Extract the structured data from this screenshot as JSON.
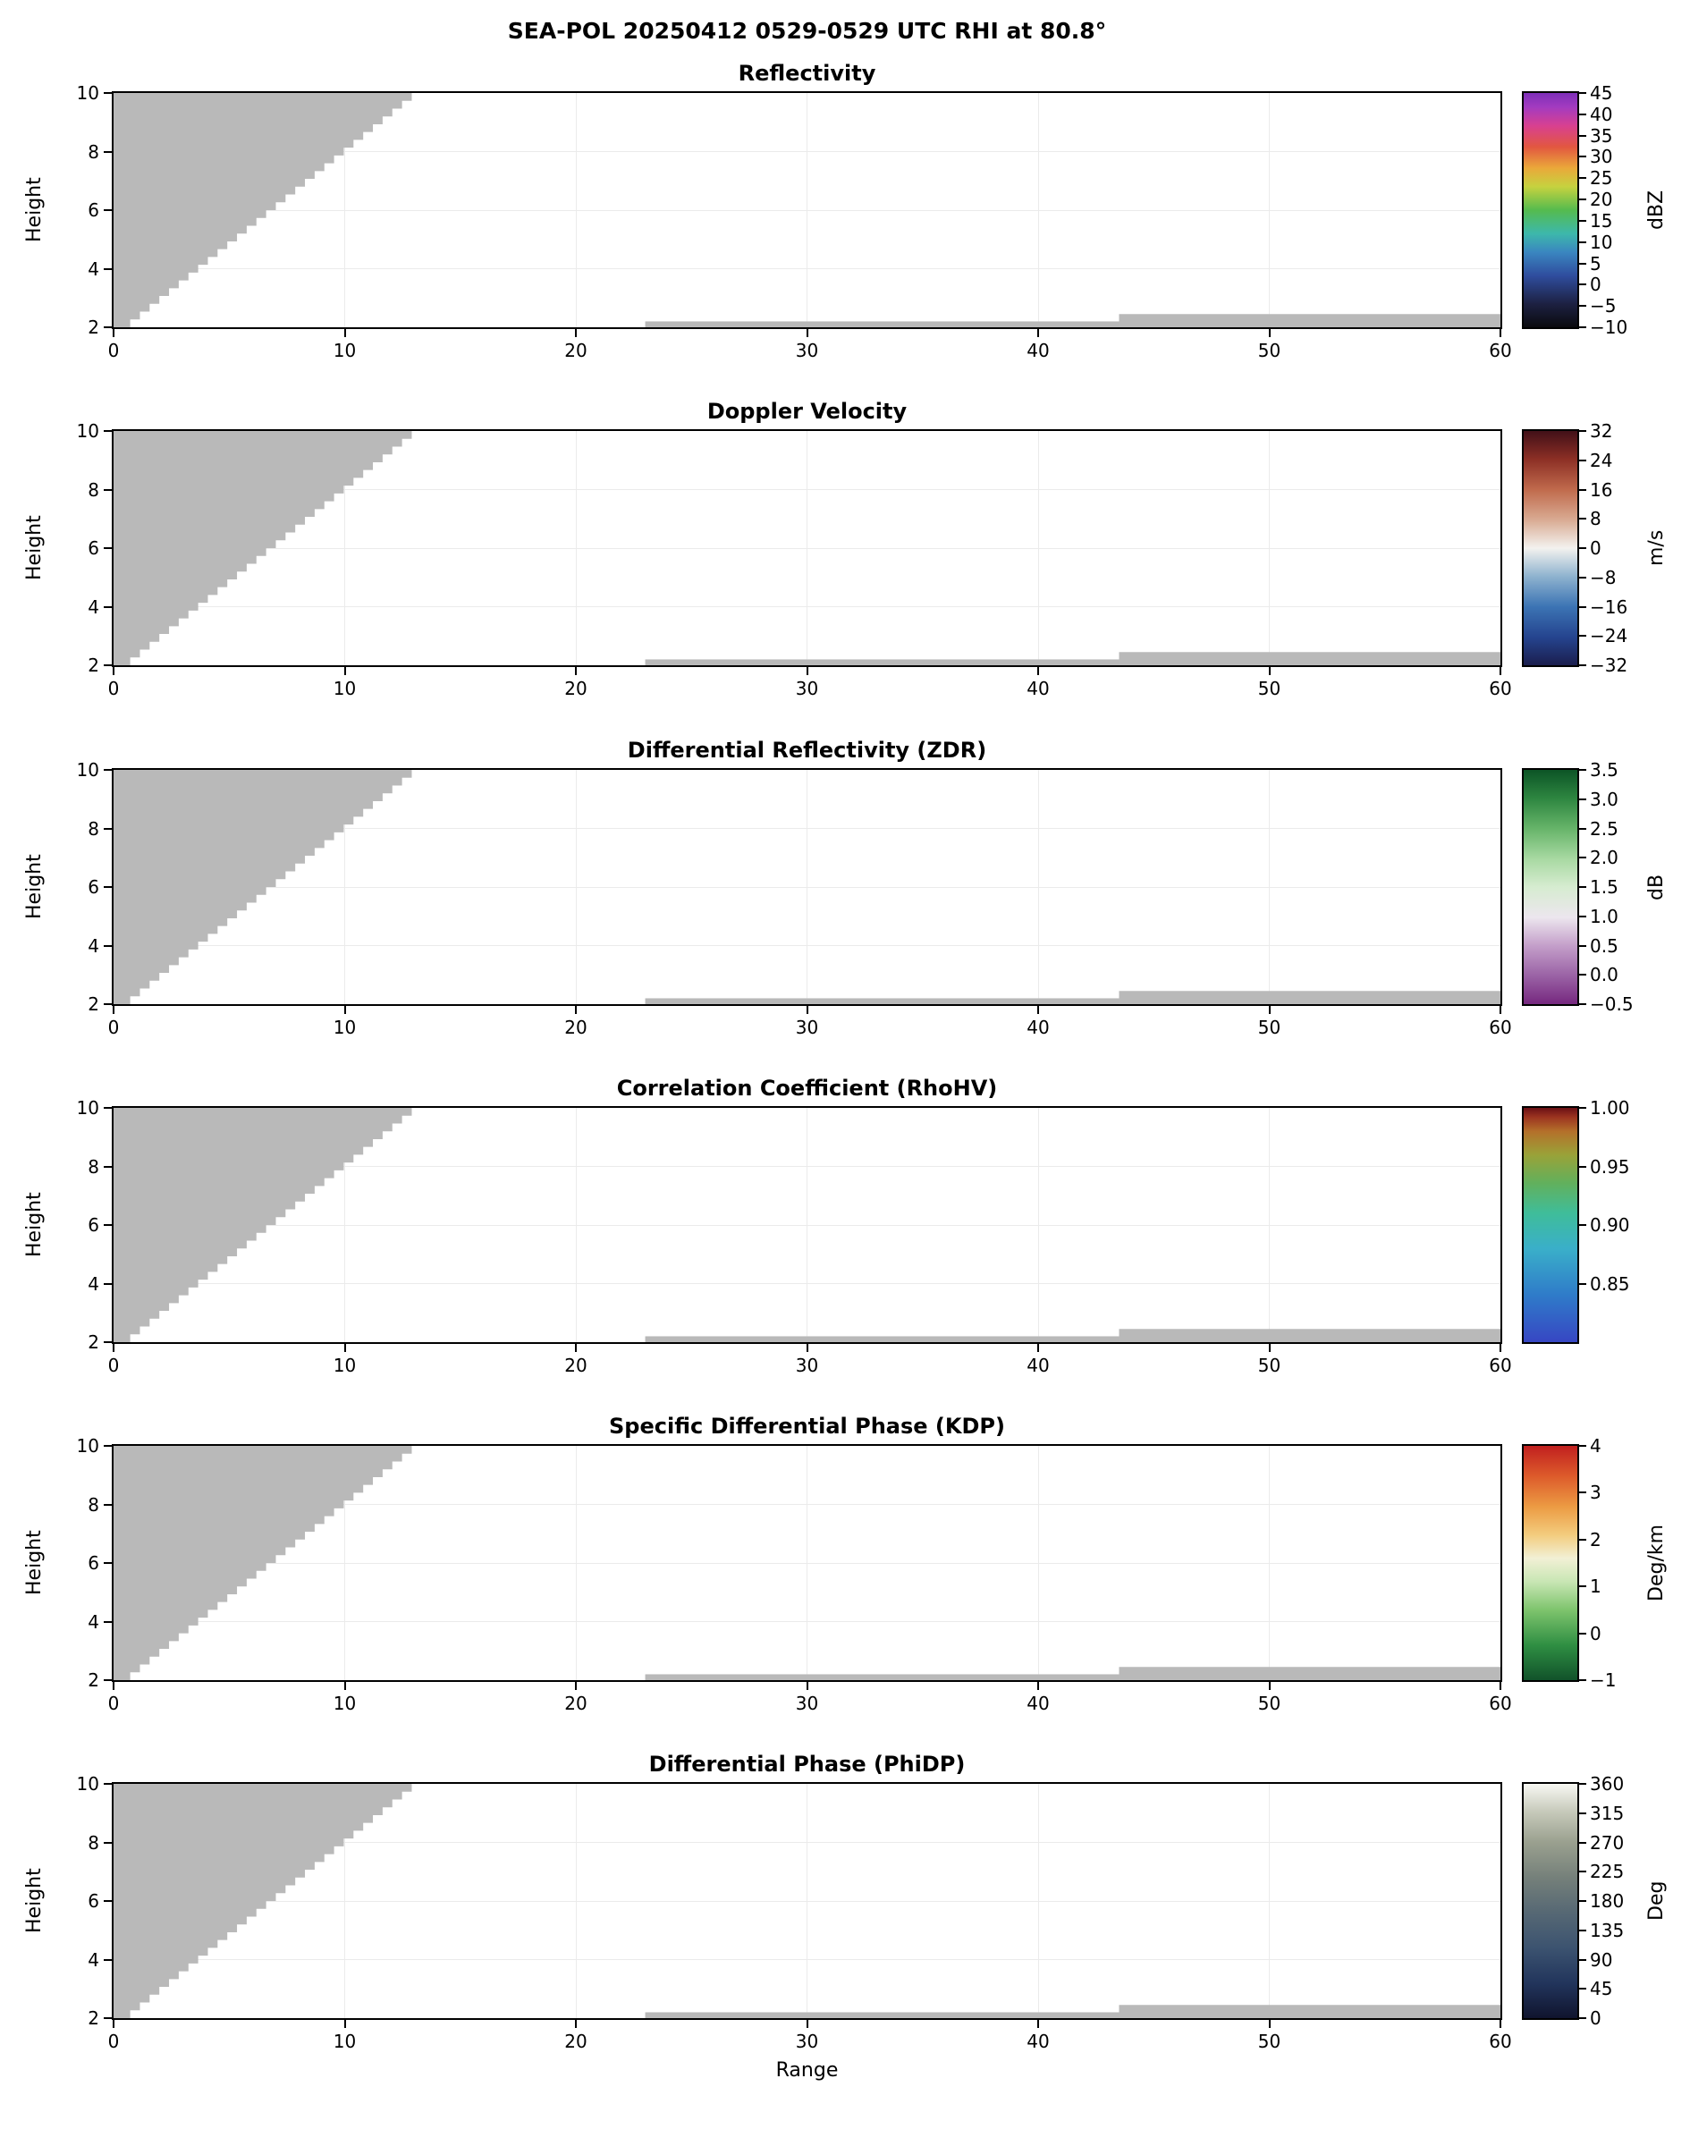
{
  "header": {
    "title": "SEA-POL 20250412 0529-0529 UTC RHI at 80.8°"
  },
  "axes": {
    "xlabel": "Range",
    "ylabel": "Height",
    "xlim": [
      0,
      60
    ],
    "ylim": [
      2,
      10
    ],
    "xticks": [
      {
        "v": 0,
        "label": "0"
      },
      {
        "v": 10,
        "label": "10"
      },
      {
        "v": 20,
        "label": "20"
      },
      {
        "v": 30,
        "label": "30"
      },
      {
        "v": 40,
        "label": "40"
      },
      {
        "v": 50,
        "label": "50"
      },
      {
        "v": 60,
        "label": "60"
      }
    ],
    "yticks": [
      {
        "v": 2,
        "label": "2"
      },
      {
        "v": 4,
        "label": "4"
      },
      {
        "v": 6,
        "label": "6"
      },
      {
        "v": 8,
        "label": "8"
      },
      {
        "v": 10,
        "label": "10"
      }
    ]
  },
  "colors": {
    "masked_gray": "#b9b9b9",
    "grid": "#ebebeb",
    "axis": "#000000",
    "background": "#ffffff"
  },
  "panels": [
    {
      "title": "Reflectivity",
      "cbar": {
        "unit": "dBZ",
        "vmin": -10,
        "vmax": 45,
        "ticks": [
          {
            "v": 45,
            "label": "45"
          },
          {
            "v": 40,
            "label": "40"
          },
          {
            "v": 35,
            "label": "35"
          },
          {
            "v": 30,
            "label": "30"
          },
          {
            "v": 25,
            "label": "25"
          },
          {
            "v": 20,
            "label": "20"
          },
          {
            "v": 15,
            "label": "15"
          },
          {
            "v": 10,
            "label": "10"
          },
          {
            "v": 5,
            "label": "5"
          },
          {
            "v": 0,
            "label": "0"
          },
          {
            "v": -5,
            "label": "−5"
          },
          {
            "v": -10,
            "label": "−10"
          }
        ],
        "stops": [
          {
            "p": 0.0,
            "c": "#0a0a0e"
          },
          {
            "p": 0.1,
            "c": "#1d2142"
          },
          {
            "p": 0.22,
            "c": "#2f4d9e"
          },
          {
            "p": 0.32,
            "c": "#3a86c0"
          },
          {
            "p": 0.4,
            "c": "#3db8ab"
          },
          {
            "p": 0.5,
            "c": "#55bb4e"
          },
          {
            "p": 0.6,
            "c": "#c6d23f"
          },
          {
            "p": 0.68,
            "c": "#eaa83a"
          },
          {
            "p": 0.77,
            "c": "#e25740"
          },
          {
            "p": 0.86,
            "c": "#d84090"
          },
          {
            "p": 0.94,
            "c": "#a33bc0"
          },
          {
            "p": 1.0,
            "c": "#7e2fb8"
          }
        ]
      }
    },
    {
      "title": "Doppler Velocity",
      "cbar": {
        "unit": "m/s",
        "vmin": -32,
        "vmax": 32,
        "ticks": [
          {
            "v": 32,
            "label": "32"
          },
          {
            "v": 24,
            "label": "24"
          },
          {
            "v": 16,
            "label": "16"
          },
          {
            "v": 8,
            "label": "8"
          },
          {
            "v": 0,
            "label": "0"
          },
          {
            "v": -8,
            "label": "−8"
          },
          {
            "v": -16,
            "label": "−16"
          },
          {
            "v": -24,
            "label": "−24"
          },
          {
            "v": -32,
            "label": "−32"
          }
        ],
        "stops": [
          {
            "p": 0.0,
            "c": "#1b1e4e"
          },
          {
            "p": 0.12,
            "c": "#25448f"
          },
          {
            "p": 0.25,
            "c": "#3c74b4"
          },
          {
            "p": 0.38,
            "c": "#8fb3cf"
          },
          {
            "p": 0.5,
            "c": "#f3f2ef"
          },
          {
            "p": 0.62,
            "c": "#d9ab93"
          },
          {
            "p": 0.75,
            "c": "#c06a4c"
          },
          {
            "p": 0.88,
            "c": "#8c2f25"
          },
          {
            "p": 1.0,
            "c": "#421018"
          }
        ]
      }
    },
    {
      "title": "Differential Reflectivity (ZDR)",
      "cbar": {
        "unit": "dB",
        "vmin": -0.5,
        "vmax": 3.5,
        "ticks": [
          {
            "v": 3.5,
            "label": "3.5"
          },
          {
            "v": 3.0,
            "label": "3.0"
          },
          {
            "v": 2.5,
            "label": "2.5"
          },
          {
            "v": 2.0,
            "label": "2.0"
          },
          {
            "v": 1.5,
            "label": "1.5"
          },
          {
            "v": 1.0,
            "label": "1.0"
          },
          {
            "v": 0.5,
            "label": "0.5"
          },
          {
            "v": 0.0,
            "label": "0.0"
          },
          {
            "v": -0.5,
            "label": "−0.5"
          }
        ],
        "stops": [
          {
            "p": 0.0,
            "c": "#76287f"
          },
          {
            "p": 0.12,
            "c": "#9a62a5"
          },
          {
            "p": 0.25,
            "c": "#c49fca"
          },
          {
            "p": 0.37,
            "c": "#ece6ee"
          },
          {
            "p": 0.5,
            "c": "#d6ecd0"
          },
          {
            "p": 0.62,
            "c": "#a8d9a2"
          },
          {
            "p": 0.75,
            "c": "#66b469"
          },
          {
            "p": 0.88,
            "c": "#2d8540"
          },
          {
            "p": 1.0,
            "c": "#0c5426"
          }
        ]
      }
    },
    {
      "title": "Correlation Coefficient (RhoHV)",
      "cbar": {
        "unit": "",
        "vmin": 0.8,
        "vmax": 1.0,
        "ticks": [
          {
            "v": 1.0,
            "label": "1.00"
          },
          {
            "v": 0.95,
            "label": "0.95"
          },
          {
            "v": 0.9,
            "label": "0.90"
          },
          {
            "v": 0.85,
            "label": "0.85"
          }
        ],
        "stops": [
          {
            "p": 0.0,
            "c": "#3747c3"
          },
          {
            "p": 0.2,
            "c": "#2f7bc9"
          },
          {
            "p": 0.4,
            "c": "#3aafc9"
          },
          {
            "p": 0.55,
            "c": "#3fbd9a"
          },
          {
            "p": 0.68,
            "c": "#62b05c"
          },
          {
            "p": 0.8,
            "c": "#9aa238"
          },
          {
            "p": 0.9,
            "c": "#b4702a"
          },
          {
            "p": 0.96,
            "c": "#9c3420"
          },
          {
            "p": 1.0,
            "c": "#6a1015"
          }
        ]
      }
    },
    {
      "title": "Specific Differential Phase (KDP)",
      "cbar": {
        "unit": "Deg/km",
        "vmin": -1,
        "vmax": 4,
        "ticks": [
          {
            "v": 4,
            "label": "4"
          },
          {
            "v": 3,
            "label": "3"
          },
          {
            "v": 2,
            "label": "2"
          },
          {
            "v": 1,
            "label": "1"
          },
          {
            "v": 0,
            "label": "0"
          },
          {
            "v": -1,
            "label": "−1"
          }
        ],
        "stops": [
          {
            "p": 0.0,
            "c": "#11522a"
          },
          {
            "p": 0.15,
            "c": "#2f8f43"
          },
          {
            "p": 0.3,
            "c": "#7ec46d"
          },
          {
            "p": 0.42,
            "c": "#c8e6b4"
          },
          {
            "p": 0.52,
            "c": "#f2f0d5"
          },
          {
            "p": 0.62,
            "c": "#f3cc7e"
          },
          {
            "p": 0.74,
            "c": "#ec9b43"
          },
          {
            "p": 0.87,
            "c": "#dd5b2b"
          },
          {
            "p": 1.0,
            "c": "#c1201f"
          }
        ]
      }
    },
    {
      "title": "Differential Phase (PhiDP)",
      "cbar": {
        "unit": "Deg",
        "vmin": 0,
        "vmax": 360,
        "ticks": [
          {
            "v": 360,
            "label": "360"
          },
          {
            "v": 315,
            "label": "315"
          },
          {
            "v": 270,
            "label": "270"
          },
          {
            "v": 225,
            "label": "225"
          },
          {
            "v": 180,
            "label": "180"
          },
          {
            "v": 135,
            "label": "135"
          },
          {
            "v": 90,
            "label": "90"
          },
          {
            "v": 45,
            "label": "45"
          },
          {
            "v": 0,
            "label": "0"
          }
        ],
        "stops": [
          {
            "p": 0.0,
            "c": "#10142e"
          },
          {
            "p": 0.15,
            "c": "#22355c"
          },
          {
            "p": 0.3,
            "c": "#3c5370"
          },
          {
            "p": 0.45,
            "c": "#566874"
          },
          {
            "p": 0.6,
            "c": "#75807a"
          },
          {
            "p": 0.75,
            "c": "#9aa08f"
          },
          {
            "p": 0.88,
            "c": "#c6c9ba"
          },
          {
            "p": 1.0,
            "c": "#f8f8f3"
          }
        ]
      }
    }
  ],
  "chart_data": {
    "type": "heatmap",
    "title": "SEA-POL 20250412 0529-0529 UTC RHI at 80.8°",
    "panel_titles": [
      "Reflectivity",
      "Doppler Velocity",
      "Differential Reflectivity (ZDR)",
      "Correlation Coefficient (RhoHV)",
      "Specific Differential Phase (KDP)",
      "Differential Phase (PhiDP)"
    ],
    "xlabel": "Range",
    "ylabel": "Height",
    "xlim": [
      0,
      60
    ],
    "ylim": [
      2,
      10
    ],
    "xticks": [
      0,
      10,
      20,
      30,
      40,
      50,
      60
    ],
    "yticks": [
      2,
      4,
      6,
      8,
      10
    ],
    "grid": true,
    "legend_position": "right-colorbars",
    "colorbars": [
      {
        "panel": "Reflectivity",
        "unit": "dBZ",
        "range": [
          -10,
          45
        ],
        "ticks": [
          -10,
          -5,
          0,
          5,
          10,
          15,
          20,
          25,
          30,
          35,
          40,
          45
        ]
      },
      {
        "panel": "Doppler Velocity",
        "unit": "m/s",
        "range": [
          -32,
          32
        ],
        "ticks": [
          -32,
          -24,
          -16,
          -8,
          0,
          8,
          16,
          24,
          32
        ]
      },
      {
        "panel": "Differential Reflectivity (ZDR)",
        "unit": "dB",
        "range": [
          -0.5,
          3.5
        ],
        "ticks": [
          -0.5,
          0.0,
          0.5,
          1.0,
          1.5,
          2.0,
          2.5,
          3.0,
          3.5
        ]
      },
      {
        "panel": "Correlation Coefficient (RhoHV)",
        "unit": "",
        "range": [
          0.8,
          1.0
        ],
        "ticks": [
          0.85,
          0.9,
          0.95,
          1.0
        ]
      },
      {
        "panel": "Specific Differential Phase (KDP)",
        "unit": "Deg/km",
        "range": [
          -1,
          4
        ],
        "ticks": [
          -1,
          0,
          1,
          2,
          3,
          4
        ]
      },
      {
        "panel": "Differential Phase (PhiDP)",
        "unit": "Deg",
        "range": [
          0,
          360
        ],
        "ticks": [
          0,
          45,
          90,
          135,
          180,
          225,
          270,
          315,
          360
        ]
      }
    ],
    "masked_regions": {
      "fill_color": "#b9b9b9",
      "wedge": {
        "x_min": 0,
        "top": 10,
        "edge_start": [
          0.3,
          2.0
        ],
        "edge_end": [
          12.9,
          10.0
        ],
        "steps": 30
      },
      "strips": [
        {
          "x0": 23.0,
          "x1": 43.5,
          "y0": 2.0,
          "y1": 2.2
        },
        {
          "x0": 43.5,
          "x1": 60.0,
          "y0": 2.0,
          "y1": 2.45
        }
      ],
      "note": "Gray regions = masked / no-echo data; identical in all six panels. No colored echoes are visible anywhere in the plots."
    }
  }
}
